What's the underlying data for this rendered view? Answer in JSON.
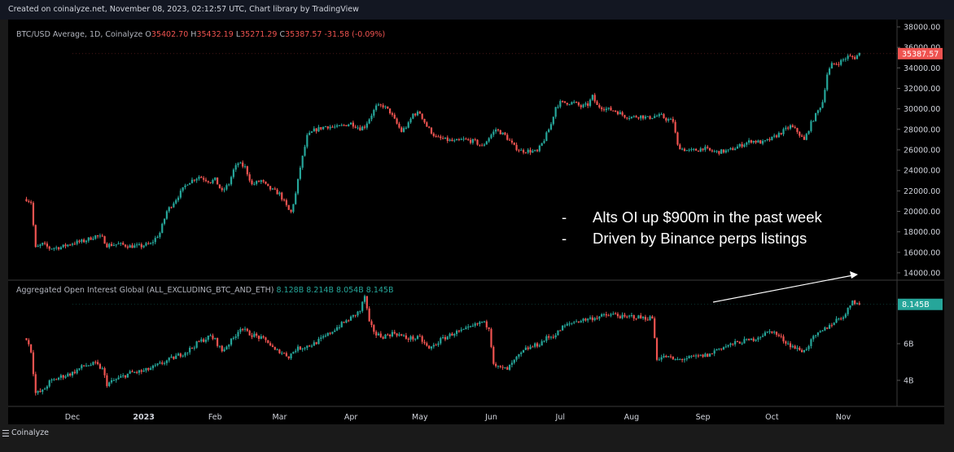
{
  "header": {
    "text": "Created on coinalyze.net, November 08, 2023, 02:12:57 UTC, Chart library by TradingView"
  },
  "footer": {
    "brand": "Coinalyze"
  },
  "colors": {
    "up": "#26a69a",
    "down": "#ef5350",
    "background": "#000000",
    "text": "#d1d4dc"
  },
  "price_legend": {
    "symbol": "BTC/USD Average, 1D, Coinalyze",
    "open_label": "O",
    "open": "35402.70",
    "high_label": "H",
    "high": "35432.19",
    "low_label": "L",
    "low": "35271.29",
    "close_label": "C",
    "close": "35387.57",
    "change": "-31.58 (-0.09%)"
  },
  "oi_legend": {
    "title": "Aggregated Open Interest Global (ALL_EXCLUDING_BTC_AND_ETH)",
    "o": "8.128B",
    "h": "8.214B",
    "l": "8.054B",
    "c": "8.145B"
  },
  "annotation": {
    "bullets": [
      "Alts OI up $900m in the past week",
      "Driven by Binance perps listings"
    ]
  },
  "chart_data": [
    {
      "type": "candlestick",
      "title": "BTC/USD Average, 1D, Coinalyze",
      "ylim": [
        13000,
        38500
      ],
      "y_ticks": [
        "14000.00",
        "16000.00",
        "18000.00",
        "20000.00",
        "22000.00",
        "24000.00",
        "26000.00",
        "28000.00",
        "30000.00",
        "32000.00",
        "34000.00",
        "36000.00",
        "38000.00"
      ],
      "y_tick_values": [
        14000,
        16000,
        18000,
        20000,
        22000,
        24000,
        26000,
        28000,
        30000,
        32000,
        34000,
        36000,
        38000
      ],
      "last_value_label": "35387.57",
      "last_value": 35387.57,
      "x_labels": [
        "Dec",
        "2023",
        "Feb",
        "Mar",
        "Apr",
        "May",
        "Jun",
        "Jul",
        "Aug",
        "Sep",
        "Oct",
        "Nov"
      ],
      "x_label_days": [
        0,
        31,
        62,
        90,
        121,
        151,
        182,
        212,
        243,
        274,
        304,
        335
      ],
      "start_day": -20,
      "anchors": [
        [
          -20,
          21200
        ],
        [
          -18,
          20900
        ],
        [
          -16,
          16400
        ],
        [
          -13,
          16800
        ],
        [
          -10,
          16400
        ],
        [
          -5,
          16500
        ],
        [
          0,
          16900
        ],
        [
          5,
          17100
        ],
        [
          10,
          17600
        ],
        [
          13,
          17400
        ],
        [
          15,
          16700
        ],
        [
          20,
          16800
        ],
        [
          25,
          16600
        ],
        [
          30,
          16600
        ],
        [
          31,
          16700
        ],
        [
          34,
          16800
        ],
        [
          38,
          17900
        ],
        [
          41,
          20000
        ],
        [
          45,
          21200
        ],
        [
          50,
          22800
        ],
        [
          55,
          23400
        ],
        [
          60,
          22900
        ],
        [
          62,
          23100
        ],
        [
          65,
          21900
        ],
        [
          68,
          22700
        ],
        [
          70,
          24000
        ],
        [
          72,
          24700
        ],
        [
          75,
          24300
        ],
        [
          78,
          22600
        ],
        [
          82,
          23000
        ],
        [
          85,
          22300
        ],
        [
          90,
          21700
        ],
        [
          94,
          20100
        ],
        [
          95,
          19900
        ],
        [
          97,
          21700
        ],
        [
          99,
          24300
        ],
        [
          102,
          27300
        ],
        [
          105,
          27900
        ],
        [
          110,
          28300
        ],
        [
          115,
          28200
        ],
        [
          121,
          28600
        ],
        [
          125,
          28100
        ],
        [
          127,
          28300
        ],
        [
          132,
          30200
        ],
        [
          135,
          30300
        ],
        [
          138,
          29700
        ],
        [
          140,
          28900
        ],
        [
          143,
          27800
        ],
        [
          146,
          28500
        ],
        [
          148,
          29500
        ],
        [
          151,
          29600
        ],
        [
          154,
          28300
        ],
        [
          158,
          27200
        ],
        [
          162,
          27000
        ],
        [
          166,
          26800
        ],
        [
          170,
          27000
        ],
        [
          175,
          26800
        ],
        [
          178,
          26300
        ],
        [
          181,
          27200
        ],
        [
          184,
          28000
        ],
        [
          188,
          27400
        ],
        [
          192,
          26300
        ],
        [
          195,
          25900
        ],
        [
          198,
          25900
        ],
        [
          202,
          25800
        ],
        [
          205,
          27000
        ],
        [
          208,
          28500
        ],
        [
          210,
          30200
        ],
        [
          212,
          30600
        ],
        [
          218,
          30600
        ],
        [
          221,
          30200
        ],
        [
          224,
          30400
        ],
        [
          226,
          31200
        ],
        [
          228,
          30300
        ],
        [
          232,
          30000
        ],
        [
          236,
          29800
        ],
        [
          240,
          29300
        ],
        [
          243,
          29200
        ],
        [
          247,
          29300
        ],
        [
          250,
          29100
        ],
        [
          253,
          29300
        ],
        [
          256,
          29300
        ],
        [
          258,
          29000
        ],
        [
          261,
          28800
        ],
        [
          263,
          26400
        ],
        [
          265,
          26100
        ],
        [
          268,
          25900
        ],
        [
          272,
          26000
        ],
        [
          274,
          26200
        ],
        [
          277,
          25900
        ],
        [
          280,
          25800
        ],
        [
          285,
          25900
        ],
        [
          290,
          26400
        ],
        [
          295,
          26900
        ],
        [
          300,
          26700
        ],
        [
          304,
          27100
        ],
        [
          308,
          27700
        ],
        [
          312,
          28300
        ],
        [
          315,
          27800
        ],
        [
          318,
          26900
        ],
        [
          321,
          28600
        ],
        [
          324,
          29800
        ],
        [
          326,
          30700
        ],
        [
          328,
          33400
        ],
        [
          330,
          34300
        ],
        [
          333,
          34500
        ],
        [
          337,
          35100
        ],
        [
          340,
          35000
        ],
        [
          342,
          35400
        ]
      ],
      "volatility": 260
    },
    {
      "type": "candlestick",
      "title": "Aggregated Open Interest Global (ALL_EXCLUDING_BTC_AND_ETH)",
      "ylim": [
        2.6,
        9.4
      ],
      "y_ticks": [
        "4B",
        "6B"
      ],
      "y_tick_values": [
        4,
        6
      ],
      "last_value_label": "8.145B",
      "last_value": 8.145,
      "start_day": -20,
      "anchors": [
        [
          -20,
          6.3
        ],
        [
          -18,
          5.6
        ],
        [
          -16,
          3.3
        ],
        [
          -13,
          3.4
        ],
        [
          -10,
          3.9
        ],
        [
          -5,
          4.2
        ],
        [
          0,
          4.4
        ],
        [
          5,
          4.8
        ],
        [
          10,
          4.9
        ],
        [
          13,
          4.6
        ],
        [
          15,
          3.8
        ],
        [
          20,
          4.1
        ],
        [
          25,
          4.4
        ],
        [
          31,
          4.5
        ],
        [
          35,
          4.7
        ],
        [
          40,
          5.0
        ],
        [
          45,
          5.3
        ],
        [
          50,
          5.6
        ],
        [
          55,
          6.1
        ],
        [
          60,
          6.4
        ],
        [
          62,
          6.2
        ],
        [
          65,
          5.6
        ],
        [
          70,
          6.3
        ],
        [
          73,
          6.9
        ],
        [
          76,
          6.6
        ],
        [
          80,
          6.4
        ],
        [
          85,
          6.1
        ],
        [
          88,
          5.6
        ],
        [
          90,
          5.6
        ],
        [
          94,
          5.3
        ],
        [
          97,
          5.7
        ],
        [
          100,
          5.8
        ],
        [
          105,
          6.0
        ],
        [
          110,
          6.4
        ],
        [
          115,
          6.9
        ],
        [
          121,
          7.4
        ],
        [
          125,
          7.8
        ],
        [
          127,
          8.6
        ],
        [
          129,
          7.1
        ],
        [
          132,
          6.5
        ],
        [
          135,
          6.4
        ],
        [
          140,
          6.6
        ],
        [
          145,
          6.3
        ],
        [
          151,
          6.3
        ],
        [
          155,
          5.7
        ],
        [
          160,
          6.2
        ],
        [
          166,
          6.6
        ],
        [
          170,
          6.7
        ],
        [
          175,
          7.0
        ],
        [
          178,
          7.2
        ],
        [
          181,
          6.9
        ],
        [
          183,
          5.0
        ],
        [
          185,
          4.7
        ],
        [
          189,
          4.6
        ],
        [
          193,
          5.2
        ],
        [
          197,
          5.7
        ],
        [
          203,
          6.0
        ],
        [
          206,
          6.3
        ],
        [
          210,
          6.5
        ],
        [
          213,
          6.9
        ],
        [
          218,
          7.2
        ],
        [
          222,
          7.3
        ],
        [
          226,
          7.4
        ],
        [
          230,
          7.5
        ],
        [
          236,
          7.6
        ],
        [
          240,
          7.4
        ],
        [
          243,
          7.5
        ],
        [
          248,
          7.4
        ],
        [
          252,
          7.4
        ],
        [
          254,
          5.2
        ],
        [
          258,
          5.3
        ],
        [
          262,
          5.1
        ],
        [
          267,
          5.2
        ],
        [
          272,
          5.3
        ],
        [
          277,
          5.4
        ],
        [
          280,
          5.7
        ],
        [
          285,
          5.9
        ],
        [
          290,
          6.1
        ],
        [
          295,
          6.2
        ],
        [
          300,
          6.5
        ],
        [
          304,
          6.7
        ],
        [
          307,
          6.4
        ],
        [
          311,
          6.0
        ],
        [
          315,
          5.7
        ],
        [
          318,
          5.6
        ],
        [
          322,
          6.3
        ],
        [
          327,
          6.8
        ],
        [
          332,
          7.3
        ],
        [
          336,
          7.6
        ],
        [
          339,
          8.4
        ],
        [
          341,
          8.2
        ],
        [
          342,
          8.1
        ]
      ],
      "volatility": 0.16
    }
  ]
}
